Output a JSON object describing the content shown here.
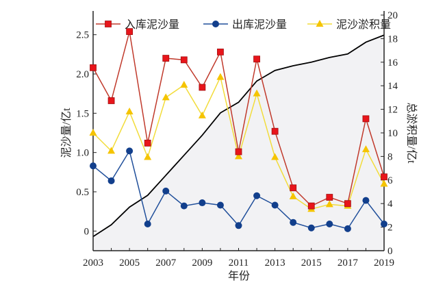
{
  "chart_data": {
    "type": "line",
    "x": [
      2003,
      2004,
      2005,
      2006,
      2007,
      2008,
      2009,
      2010,
      2011,
      2012,
      2013,
      2014,
      2015,
      2016,
      2017,
      2018,
      2019
    ],
    "xlabel": "年份",
    "ylabel": "泥沙量/亿t",
    "y2label": "总淤积量/亿t",
    "xticks": [
      "2003",
      "2005",
      "2007",
      "2009",
      "2011",
      "2013",
      "2015",
      "2017",
      "2019"
    ],
    "yticks": [
      "0",
      "0.5",
      "1.0",
      "1.5",
      "2.0",
      "2.5"
    ],
    "y2ticks": [
      "0",
      "2",
      "4",
      "6",
      "8",
      "10",
      "12",
      "14",
      "16",
      "18",
      "20"
    ],
    "ylim": [
      -0.25,
      2.75
    ],
    "y2lim": [
      0,
      20
    ],
    "xlim": [
      2003,
      2019
    ],
    "legend_position": "top",
    "series": [
      {
        "name": "入库泥沙量",
        "axis": "left",
        "marker": "square",
        "color": "#c0392b",
        "marker_color": "#e8151b",
        "values": [
          2.08,
          1.66,
          2.54,
          1.12,
          2.2,
          2.18,
          1.83,
          2.28,
          1.01,
          2.19,
          1.27,
          0.55,
          0.32,
          0.43,
          0.35,
          1.43,
          0.69
        ]
      },
      {
        "name": "出库泥沙量",
        "axis": "left",
        "marker": "circle",
        "color": "#1f4e9a",
        "marker_color": "#123f8c",
        "values": [
          0.83,
          0.64,
          1.02,
          0.09,
          0.51,
          0.32,
          0.36,
          0.33,
          0.07,
          0.45,
          0.33,
          0.11,
          0.04,
          0.09,
          0.03,
          0.39,
          0.09
        ]
      },
      {
        "name": "泥沙淤积量",
        "axis": "left",
        "marker": "triangle",
        "color": "#f2dc3a",
        "marker_color": "#f5c400",
        "values": [
          1.25,
          1.02,
          1.52,
          0.94,
          1.7,
          1.86,
          1.47,
          1.96,
          0.95,
          1.75,
          0.94,
          0.44,
          0.28,
          0.34,
          0.32,
          1.04,
          0.6
        ]
      },
      {
        "axis": "right",
        "type": "area",
        "color": "#000000",
        "fill": "#f2f2f4",
        "values": [
          1.2,
          2.2,
          3.7,
          4.7,
          6.4,
          8.1,
          9.8,
          11.7,
          12.6,
          14.4,
          15.3,
          15.7,
          16.0,
          16.4,
          16.7,
          17.7,
          18.3
        ]
      }
    ]
  }
}
